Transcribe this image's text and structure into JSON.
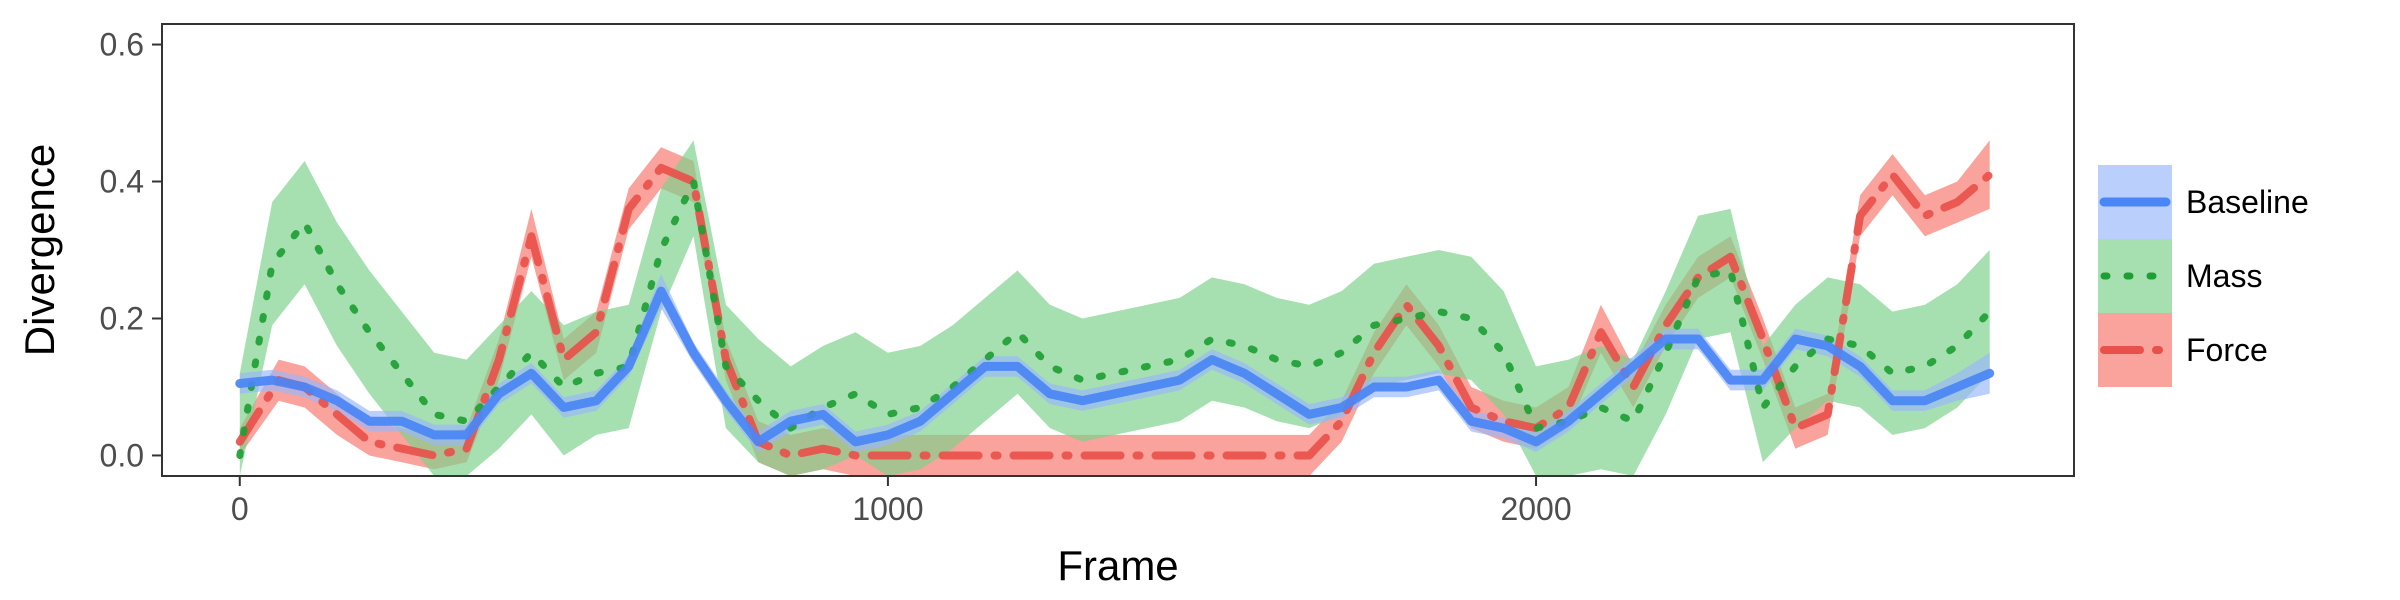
{
  "chart_data": {
    "type": "line",
    "title": "",
    "xlabel": "Frame",
    "ylabel": "Divergence",
    "xlim": [
      -120,
      2830
    ],
    "ylim": [
      -0.03,
      0.63
    ],
    "x_ticks": [
      0,
      1000,
      2000
    ],
    "x_tick_labels": [
      "0",
      "1000",
      "2000"
    ],
    "y_ticks": [
      0.0,
      0.2,
      0.4,
      0.6
    ],
    "y_tick_labels": [
      "0.0",
      "0.2",
      "0.4",
      "0.6"
    ],
    "grid": false,
    "legend_position": "right",
    "series": [
      {
        "name": "Force",
        "color": "#f8766d",
        "line_color": "#e8514b",
        "linetype": "dotdash",
        "x": [
          0,
          60,
          100,
          150,
          200,
          250,
          300,
          350,
          400,
          450,
          500,
          550,
          600,
          650,
          700,
          750,
          800,
          850,
          900,
          950,
          1000,
          1050,
          1100,
          1150,
          1200,
          1250,
          1300,
          1350,
          1400,
          1450,
          1500,
          1550,
          1600,
          1650,
          1700,
          1750,
          1800,
          1850,
          1900,
          1950,
          2000,
          2050,
          2100,
          2150,
          2200,
          2250,
          2300,
          2350,
          2400,
          2450,
          2500,
          2550,
          2600,
          2650,
          2700
        ],
        "y": [
          0.02,
          0.11,
          0.1,
          0.06,
          0.02,
          0.01,
          0.0,
          0.01,
          0.14,
          0.32,
          0.14,
          0.18,
          0.36,
          0.42,
          0.4,
          0.14,
          0.02,
          0.0,
          0.01,
          0.0,
          0.0,
          0.0,
          0.0,
          0.0,
          0.0,
          0.0,
          0.0,
          0.0,
          0.0,
          0.0,
          0.0,
          0.0,
          0.0,
          0.0,
          0.05,
          0.15,
          0.22,
          0.16,
          0.07,
          0.05,
          0.04,
          0.07,
          0.18,
          0.1,
          0.19,
          0.26,
          0.29,
          0.17,
          0.04,
          0.06,
          0.35,
          0.41,
          0.35,
          0.37,
          0.41
        ],
        "lower": [
          0.0,
          0.08,
          0.07,
          0.03,
          0.0,
          -0.01,
          -0.02,
          -0.01,
          0.11,
          0.29,
          0.11,
          0.15,
          0.33,
          0.39,
          0.37,
          0.11,
          -0.01,
          -0.03,
          -0.02,
          -0.03,
          -0.03,
          -0.03,
          -0.03,
          -0.03,
          -0.03,
          -0.03,
          -0.03,
          -0.03,
          -0.03,
          -0.03,
          -0.03,
          -0.03,
          -0.03,
          -0.03,
          0.02,
          0.12,
          0.19,
          0.13,
          0.04,
          0.02,
          0.01,
          0.04,
          0.15,
          0.07,
          0.16,
          0.23,
          0.26,
          0.14,
          0.01,
          0.03,
          0.32,
          0.38,
          0.32,
          0.34,
          0.36
        ],
        "upper": [
          0.04,
          0.14,
          0.13,
          0.09,
          0.05,
          0.04,
          0.03,
          0.04,
          0.17,
          0.36,
          0.17,
          0.21,
          0.39,
          0.45,
          0.43,
          0.17,
          0.05,
          0.03,
          0.04,
          0.03,
          0.03,
          0.03,
          0.03,
          0.03,
          0.03,
          0.03,
          0.03,
          0.03,
          0.03,
          0.03,
          0.03,
          0.03,
          0.03,
          0.03,
          0.08,
          0.18,
          0.25,
          0.19,
          0.1,
          0.08,
          0.07,
          0.1,
          0.22,
          0.13,
          0.22,
          0.29,
          0.32,
          0.2,
          0.07,
          0.09,
          0.38,
          0.44,
          0.38,
          0.4,
          0.46
        ]
      },
      {
        "name": "Mass",
        "color": "#7cd18a",
        "line_color": "#1f9e34",
        "linetype": "dotted",
        "x": [
          0,
          50,
          100,
          150,
          200,
          250,
          300,
          350,
          400,
          450,
          500,
          550,
          600,
          650,
          700,
          750,
          800,
          850,
          900,
          950,
          1000,
          1050,
          1100,
          1150,
          1200,
          1250,
          1300,
          1350,
          1400,
          1450,
          1500,
          1550,
          1600,
          1650,
          1700,
          1750,
          1800,
          1850,
          1900,
          1950,
          2000,
          2050,
          2100,
          2150,
          2200,
          2250,
          2300,
          2350,
          2400,
          2450,
          2500,
          2550,
          2600,
          2650,
          2700
        ],
        "y": [
          0.0,
          0.28,
          0.34,
          0.25,
          0.18,
          0.12,
          0.06,
          0.05,
          0.1,
          0.15,
          0.1,
          0.12,
          0.13,
          0.3,
          0.4,
          0.13,
          0.08,
          0.04,
          0.07,
          0.09,
          0.06,
          0.07,
          0.1,
          0.14,
          0.18,
          0.13,
          0.11,
          0.12,
          0.13,
          0.14,
          0.17,
          0.16,
          0.14,
          0.13,
          0.15,
          0.19,
          0.2,
          0.21,
          0.2,
          0.15,
          0.04,
          0.05,
          0.07,
          0.05,
          0.15,
          0.26,
          0.27,
          0.07,
          0.13,
          0.17,
          0.16,
          0.12,
          0.13,
          0.16,
          0.21
        ],
        "lower": [
          -0.03,
          0.19,
          0.25,
          0.16,
          0.09,
          0.03,
          -0.03,
          -0.03,
          0.01,
          0.06,
          0.0,
          0.03,
          0.04,
          0.21,
          0.32,
          0.04,
          -0.01,
          -0.03,
          -0.02,
          0.0,
          -0.03,
          -0.02,
          0.01,
          0.05,
          0.09,
          0.04,
          0.02,
          0.03,
          0.04,
          0.05,
          0.08,
          0.07,
          0.05,
          0.04,
          0.06,
          0.1,
          0.11,
          0.12,
          0.11,
          0.06,
          -0.03,
          -0.03,
          -0.02,
          -0.03,
          0.06,
          0.17,
          0.18,
          -0.01,
          0.04,
          0.08,
          0.07,
          0.03,
          0.04,
          0.07,
          0.12
        ],
        "upper": [
          0.12,
          0.37,
          0.43,
          0.34,
          0.27,
          0.21,
          0.15,
          0.14,
          0.19,
          0.24,
          0.19,
          0.21,
          0.22,
          0.39,
          0.46,
          0.22,
          0.17,
          0.13,
          0.16,
          0.18,
          0.15,
          0.16,
          0.19,
          0.23,
          0.27,
          0.22,
          0.2,
          0.21,
          0.22,
          0.23,
          0.26,
          0.25,
          0.23,
          0.22,
          0.24,
          0.28,
          0.29,
          0.3,
          0.29,
          0.24,
          0.13,
          0.14,
          0.16,
          0.14,
          0.24,
          0.35,
          0.36,
          0.16,
          0.22,
          0.26,
          0.25,
          0.21,
          0.22,
          0.25,
          0.3
        ]
      },
      {
        "name": "Baseline",
        "color": "#9ab8fa",
        "line_color": "#4a86f5",
        "linetype": "solid",
        "x": [
          0,
          50,
          100,
          150,
          200,
          250,
          300,
          350,
          400,
          450,
          500,
          550,
          600,
          650,
          700,
          750,
          800,
          850,
          900,
          950,
          1000,
          1050,
          1100,
          1150,
          1200,
          1250,
          1300,
          1350,
          1400,
          1450,
          1500,
          1550,
          1600,
          1650,
          1700,
          1750,
          1800,
          1850,
          1900,
          1950,
          2000,
          2050,
          2100,
          2150,
          2200,
          2250,
          2300,
          2350,
          2400,
          2450,
          2500,
          2550,
          2600,
          2650,
          2700
        ],
        "y": [
          0.105,
          0.11,
          0.1,
          0.08,
          0.05,
          0.05,
          0.03,
          0.03,
          0.09,
          0.12,
          0.07,
          0.08,
          0.13,
          0.24,
          0.15,
          0.08,
          0.02,
          0.05,
          0.06,
          0.02,
          0.03,
          0.05,
          0.09,
          0.13,
          0.13,
          0.09,
          0.08,
          0.09,
          0.1,
          0.11,
          0.14,
          0.12,
          0.09,
          0.06,
          0.07,
          0.1,
          0.1,
          0.11,
          0.05,
          0.04,
          0.02,
          0.05,
          0.09,
          0.13,
          0.17,
          0.17,
          0.11,
          0.11,
          0.17,
          0.16,
          0.13,
          0.08,
          0.08,
          0.1,
          0.12
        ],
        "lower": [
          0.09,
          0.095,
          0.085,
          0.065,
          0.035,
          0.035,
          0.015,
          0.015,
          0.075,
          0.105,
          0.055,
          0.065,
          0.115,
          0.215,
          0.135,
          0.065,
          0.005,
          0.035,
          0.045,
          0.005,
          0.015,
          0.035,
          0.075,
          0.115,
          0.115,
          0.075,
          0.065,
          0.075,
          0.085,
          0.095,
          0.125,
          0.105,
          0.075,
          0.045,
          0.055,
          0.085,
          0.085,
          0.095,
          0.035,
          0.025,
          0.005,
          0.035,
          0.075,
          0.115,
          0.155,
          0.155,
          0.095,
          0.095,
          0.155,
          0.145,
          0.115,
          0.065,
          0.065,
          0.08,
          0.09
        ],
        "upper": [
          0.12,
          0.125,
          0.115,
          0.095,
          0.065,
          0.065,
          0.045,
          0.045,
          0.105,
          0.135,
          0.085,
          0.095,
          0.145,
          0.265,
          0.165,
          0.095,
          0.035,
          0.065,
          0.075,
          0.035,
          0.045,
          0.065,
          0.105,
          0.145,
          0.145,
          0.105,
          0.095,
          0.105,
          0.115,
          0.125,
          0.155,
          0.135,
          0.105,
          0.075,
          0.085,
          0.115,
          0.115,
          0.125,
          0.065,
          0.055,
          0.035,
          0.065,
          0.105,
          0.145,
          0.185,
          0.185,
          0.125,
          0.125,
          0.185,
          0.175,
          0.145,
          0.095,
          0.095,
          0.12,
          0.15
        ]
      }
    ],
    "legend": [
      {
        "label": "Baseline",
        "series": "Baseline"
      },
      {
        "label": "Mass",
        "series": "Mass"
      },
      {
        "label": "Force",
        "series": "Force"
      }
    ]
  }
}
